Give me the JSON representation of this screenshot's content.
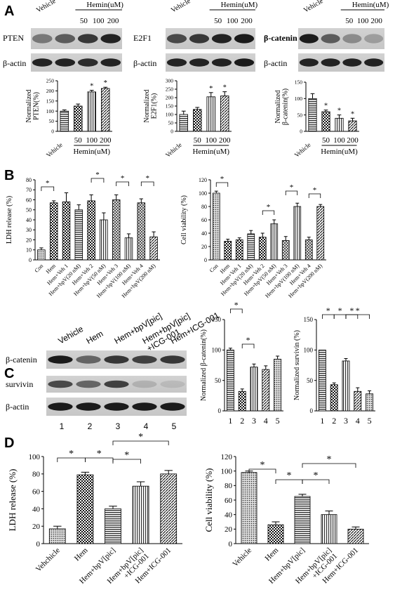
{
  "panels": {
    "A": "A",
    "B": "B",
    "C": "C",
    "D": "D"
  },
  "panelA": {
    "lane_header": {
      "vehicle": "Vehicle",
      "hemin": "Hemin(uM)",
      "doses": [
        "50",
        "100",
        "200"
      ]
    },
    "blots": [
      {
        "protein": "PTEN",
        "control": "β-actin"
      },
      {
        "protein": "E2F1",
        "control": "β-actin"
      },
      {
        "protein": "β-catenin",
        "control": "β-actin"
      }
    ],
    "bar_xlabels": [
      "Vehicle",
      "50",
      "100",
      "200"
    ],
    "bar_xgroup": "Hemin(uM)",
    "star": "*"
  },
  "panelB": {
    "star": "*",
    "xlabels": [
      "Con",
      "Hem",
      "Hem+Veh 1",
      "Hem+bpV(20 nM)",
      "Hem+Veh 2",
      "Hem+bpV(50 nM)",
      "Hem+Veh 3",
      "Hem+bpV(100 nM)",
      "Hem+Veh 4",
      "Hem+bpV(200 nM)"
    ]
  },
  "panelC": {
    "lanes": [
      "Vehicle",
      "Hem",
      "Hem+bpV[pic]",
      "Hem+bpV[pic]\n+ICG-001",
      "Hem+ICG-001"
    ],
    "lane_numbers": [
      "1",
      "2",
      "3",
      "4",
      "5"
    ],
    "blots": [
      "β-catenin",
      "survivin",
      "β-actin"
    ],
    "star": "*"
  },
  "panelD": {
    "xlabels": [
      "Vehchicle",
      "Hem",
      "Hem+bpV[pic]",
      "Hem+bpV[pic]\n+ICG-001",
      "Hem+ICG-001"
    ],
    "xlabels_right": [
      "Vehicle",
      "Hem",
      "Hem+bpV[pic]",
      "Hem+bpV[pic]\n+ICG-001",
      "Hem+ICG-001"
    ],
    "star": "*"
  },
  "chart_data": [
    {
      "id": "A1",
      "type": "bar",
      "ylabel": "Normalized\nPTEN(%)",
      "ylim": [
        0,
        250
      ],
      "ticks": [
        0,
        50,
        100,
        150,
        200,
        250
      ],
      "categories": [
        "Vehicle",
        "50",
        "100",
        "200"
      ],
      "values": [
        100,
        125,
        195,
        212
      ],
      "errors": [
        6,
        10,
        8,
        6
      ],
      "sig": [
        false,
        false,
        true,
        true
      ]
    },
    {
      "id": "A2",
      "type": "bar",
      "ylabel": "Normalized\nE2F1(%)",
      "ylim": [
        0,
        300
      ],
      "ticks": [
        0,
        50,
        100,
        150,
        200,
        250,
        300
      ],
      "categories": [
        "Vehicle",
        "50",
        "100",
        "200"
      ],
      "values": [
        100,
        130,
        205,
        210
      ],
      "errors": [
        20,
        12,
        25,
        25
      ],
      "sig": [
        false,
        false,
        true,
        true
      ]
    },
    {
      "id": "A3",
      "type": "bar",
      "ylabel": "Normalized\nβ-catenin(%)",
      "ylim": [
        0,
        150
      ],
      "ticks": [
        0,
        50,
        100,
        150
      ],
      "categories": [
        "Vehicle",
        "50",
        "100",
        "200"
      ],
      "values": [
        100,
        60,
        40,
        32
      ],
      "errors": [
        15,
        5,
        10,
        8
      ],
      "sig": [
        false,
        true,
        true,
        true
      ]
    },
    {
      "id": "B1",
      "type": "bar",
      "ylabel": "LDH release (%)",
      "ylim": [
        0,
        80
      ],
      "ticks": [
        0,
        10,
        20,
        30,
        40,
        50,
        60,
        70,
        80
      ],
      "categories": [
        "Con",
        "Hem",
        "Hem+Veh 1",
        "Hem+bpV(20 nM)",
        "Hem+Veh 2",
        "Hem+bpV(50 nM)",
        "Hem+Veh 3",
        "Hem+bpV(100 nM)",
        "Hem+Veh 4",
        "Hem+bpV(200 nM)"
      ],
      "values": [
        10,
        57,
        58,
        50,
        59,
        40,
        60,
        22,
        57,
        23
      ],
      "errors": [
        2,
        2,
        9,
        5,
        6,
        7,
        5,
        4,
        4,
        5
      ],
      "brackets": [
        [
          0,
          1
        ],
        [
          4,
          5
        ],
        [
          6,
          7
        ],
        [
          8,
          9
        ]
      ]
    },
    {
      "id": "B2",
      "type": "bar",
      "ylabel": "Cell viability (%)",
      "ylim": [
        0,
        120
      ],
      "ticks": [
        0,
        20,
        40,
        60,
        80,
        100,
        120
      ],
      "categories": [
        "Con",
        "Hem",
        "Hem+Veh 1",
        "Hem+bpV(20 nM)",
        "Hem+Veh 2",
        "Hem+bpV(50 nM)",
        "Hem+Veh 3",
        "Hem+bpV(100 nM)",
        "Hem+Veh 4",
        "Hem+bpV(200 nM)"
      ],
      "values": [
        100,
        28,
        30,
        39,
        34,
        54,
        29,
        80,
        30,
        80
      ],
      "errors": [
        3,
        3,
        3,
        5,
        6,
        6,
        6,
        5,
        4,
        3
      ],
      "brackets": [
        [
          0,
          1
        ],
        [
          4,
          5
        ],
        [
          6,
          7
        ],
        [
          8,
          9
        ]
      ]
    },
    {
      "id": "C1",
      "type": "bar",
      "ylabel": "Normalized β-catenin(%)",
      "ylim": [
        0,
        150
      ],
      "ticks": [
        0,
        50,
        100,
        150
      ],
      "categories": [
        "1",
        "2",
        "3",
        "4",
        "5"
      ],
      "values": [
        100,
        32,
        72,
        68,
        85
      ],
      "errors": [
        3,
        4,
        5,
        6,
        5
      ],
      "brackets": [
        [
          0,
          1
        ],
        [
          1,
          2
        ]
      ]
    },
    {
      "id": "C2",
      "type": "bar",
      "ylabel": "Normalized survivin (%)",
      "ylim": [
        0,
        150
      ],
      "ticks": [
        0,
        50,
        100,
        150
      ],
      "categories": [
        "1",
        "2",
        "3",
        "4",
        "5"
      ],
      "values": [
        100,
        43,
        82,
        32,
        28
      ],
      "errors": [
        0,
        3,
        4,
        6,
        5
      ],
      "brackets": [
        [
          0,
          1
        ],
        [
          1,
          2
        ],
        [
          2,
          3
        ],
        [
          2,
          4
        ]
      ]
    },
    {
      "id": "D1",
      "type": "bar",
      "ylabel": "LDH release (%)",
      "ylim": [
        0,
        100
      ],
      "ticks": [
        0,
        20,
        40,
        60,
        80,
        100
      ],
      "categories": [
        "Vehchicle",
        "Hem",
        "Hem+bpV[pic]",
        "Hem+bpV[pic]\n+ICG-001",
        "Hem+ICG-001"
      ],
      "values": [
        17,
        79,
        40,
        66,
        80
      ],
      "errors": [
        3,
        3,
        3,
        5,
        4
      ],
      "brackets": [
        [
          0,
          1
        ],
        [
          1,
          2
        ],
        [
          2,
          3
        ],
        [
          2,
          4
        ]
      ]
    },
    {
      "id": "D2",
      "type": "bar",
      "ylabel": "Cell viability (%)",
      "ylim": [
        0,
        120
      ],
      "ticks": [
        0,
        20,
        40,
        60,
        80,
        100,
        120
      ],
      "categories": [
        "Vehicle",
        "Hem",
        "Hem+bpV[pic]",
        "Hem+bpV[pic]\n+ICG-001",
        "Hem+ICG-001"
      ],
      "values": [
        98,
        26,
        65,
        40,
        20
      ],
      "errors": [
        2,
        4,
        3,
        5,
        3
      ],
      "brackets": [
        [
          0,
          1
        ],
        [
          1,
          2
        ],
        [
          2,
          3
        ],
        [
          2,
          4
        ]
      ]
    }
  ]
}
